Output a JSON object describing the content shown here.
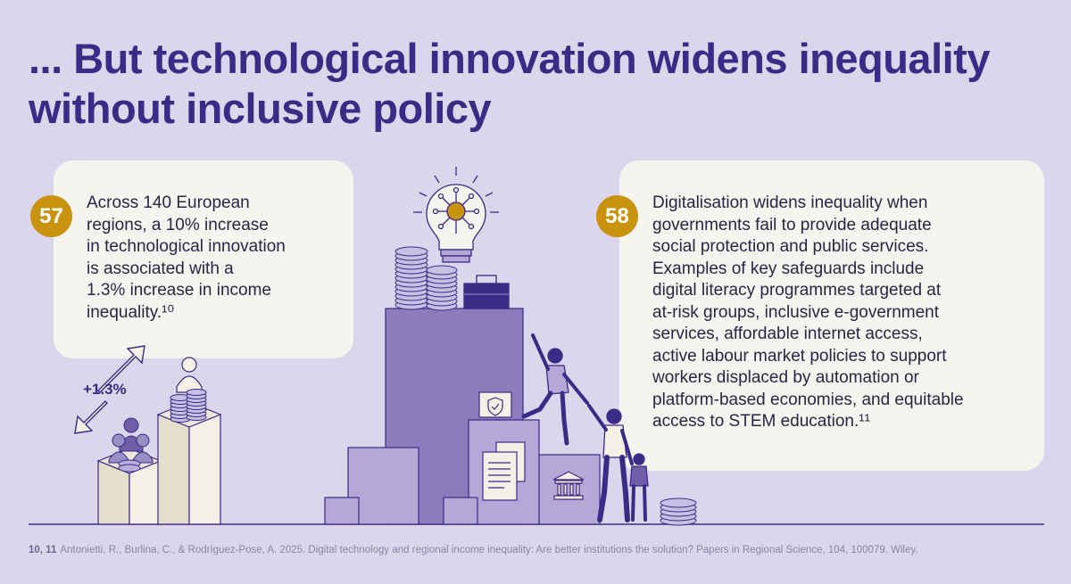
{
  "title": "... But technological innovation widens inequality without inclusive policy",
  "stat_left": {
    "number": "57",
    "text": "Across 140 European\nregions, a 10% increase\nin technological innovation\nis associated with a\n1.3% increase in income\ninequality.¹⁰"
  },
  "stat_right": {
    "number": "58",
    "text": "Digitalisation widens inequality when\ngovernments fail to provide adequate\nsocial protection and public services.\nExamples of key safeguards include\ndigital literacy programmes targeted at\nat-risk groups, inclusive e-government\nservices, affordable internet access,\nactive labour market policies to support\nworkers displaced by automation or\nplatform-based economies, and equitable\naccess to STEM education.¹¹"
  },
  "illustration": {
    "increase_label": "+1.3%",
    "icons": [
      "lightbulb-icon",
      "coin-stack-icon",
      "briefcase-icon",
      "shield-check-icon",
      "document-icon",
      "bank-icon",
      "person-icon"
    ]
  },
  "colors": {
    "background": "#dcd6ec",
    "title": "#3b2a86",
    "badge": "#c9920f",
    "card": "#f5f4ef"
  },
  "footer": {
    "refs": "10, 11",
    "citation": "Antonietti, R., Burlina, C., & Rodríguez-Pose, A. 2025. Digital technology and regional income inequality: Are better institutions the solution? Papers in Regional Science, 104, 100079. Wiley."
  }
}
